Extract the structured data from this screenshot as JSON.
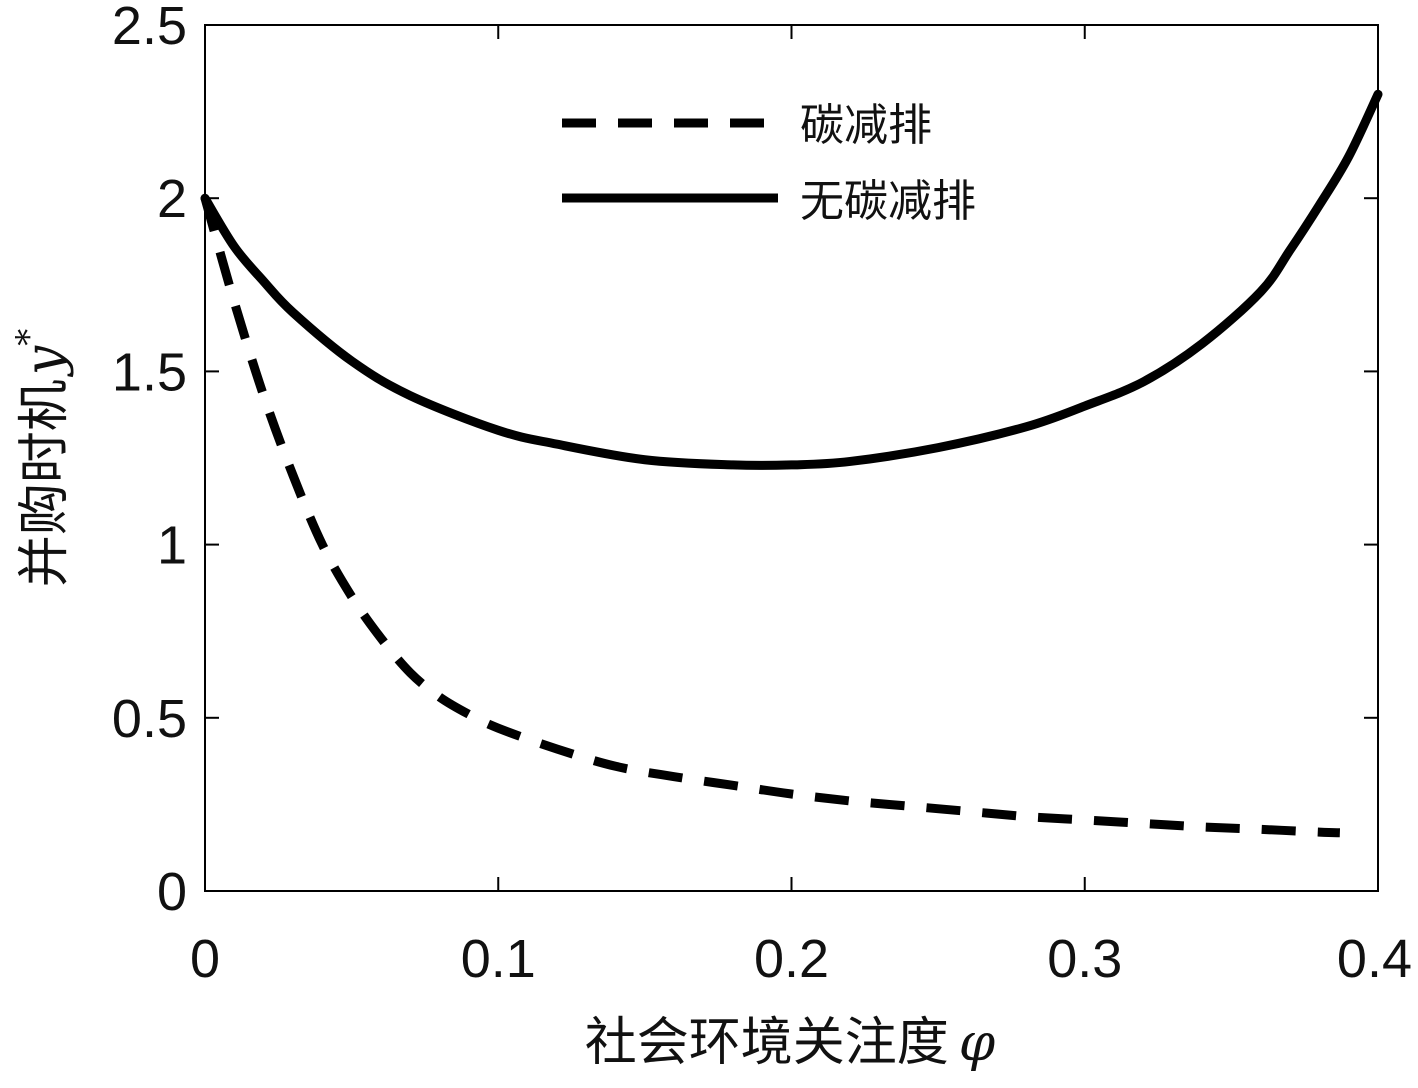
{
  "chart_data": {
    "type": "line",
    "xlabel": "社会环境关注度",
    "xlabel_symbol": "φ",
    "ylabel": "并购时机",
    "ylabel_symbol": "y",
    "ylabel_superscript": "*",
    "xlim": [
      0,
      0.4
    ],
    "ylim": [
      0,
      2.5
    ],
    "x_ticks": [
      "0",
      "0.1",
      "0.2",
      "0.3",
      "0.4"
    ],
    "y_ticks": [
      "0",
      "0.5",
      "1",
      "1.5",
      "2",
      "2.5"
    ],
    "grid": false,
    "legend_position": "top-center",
    "series": [
      {
        "name": "碳减排",
        "style": "dashed",
        "color": "#000000",
        "x": [
          0.0,
          0.01,
          0.02,
          0.03,
          0.04,
          0.05,
          0.06,
          0.07,
          0.08,
          0.09,
          0.1,
          0.12,
          0.14,
          0.16,
          0.18,
          0.2,
          0.22,
          0.24,
          0.26,
          0.28,
          0.3,
          0.32,
          0.34,
          0.36,
          0.38,
          0.387
        ],
        "y": [
          2.0,
          1.7,
          1.43,
          1.2,
          1.0,
          0.85,
          0.73,
          0.63,
          0.56,
          0.51,
          0.47,
          0.41,
          0.36,
          0.33,
          0.305,
          0.28,
          0.26,
          0.245,
          0.23,
          0.215,
          0.205,
          0.195,
          0.185,
          0.178,
          0.17,
          0.168
        ]
      },
      {
        "name": "无碳减排",
        "style": "solid",
        "color": "#000000",
        "x": [
          0.0,
          0.01,
          0.02,
          0.03,
          0.05,
          0.07,
          0.1,
          0.12,
          0.15,
          0.18,
          0.2,
          0.22,
          0.25,
          0.28,
          0.3,
          0.32,
          0.34,
          0.36,
          0.37,
          0.38,
          0.39,
          0.4
        ],
        "y": [
          2.0,
          1.86,
          1.76,
          1.67,
          1.53,
          1.43,
          1.33,
          1.29,
          1.245,
          1.23,
          1.23,
          1.24,
          1.28,
          1.34,
          1.4,
          1.47,
          1.58,
          1.73,
          1.85,
          1.98,
          2.12,
          2.3
        ]
      }
    ]
  }
}
